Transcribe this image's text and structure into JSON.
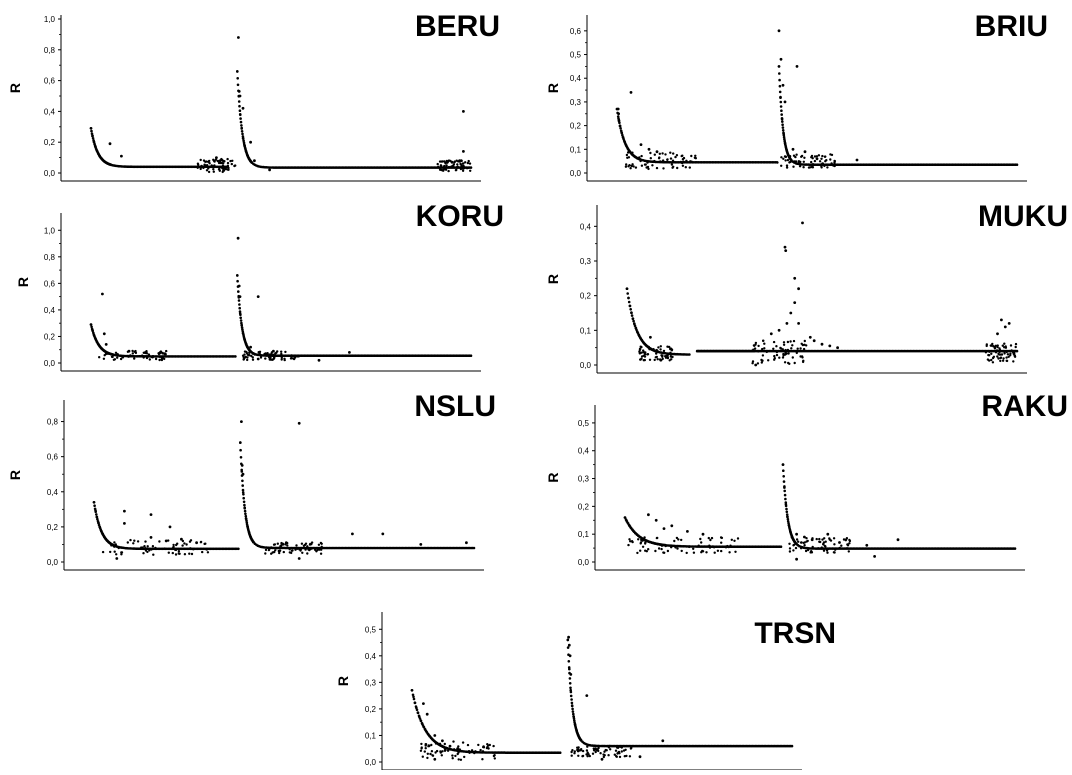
{
  "chart_data": [
    {
      "type": "scatter",
      "title": "BERU",
      "ylabel": "R",
      "ylim": [
        0,
        1.0
      ],
      "yticks": [
        "0,0",
        "0,2",
        "0,4",
        "0,6",
        "0,8",
        "1,0"
      ],
      "series": [
        {
          "segments": [
            {
              "x0": 0.0,
              "x1": 0.36,
              "base": 0.04,
              "peak": 0.29,
              "decay": 0.018
            },
            {
              "x0": 0.385,
              "x1": 1.0,
              "base": 0.035,
              "peak": 0.66,
              "decay": 0.013
            }
          ]
        }
      ],
      "outliers": [
        [
          0.388,
          0.88
        ],
        [
          0.39,
          0.53
        ],
        [
          0.392,
          0.5
        ],
        [
          0.4,
          0.42
        ],
        [
          0.42,
          0.2
        ],
        [
          0.05,
          0.19
        ],
        [
          0.08,
          0.11
        ],
        [
          0.34,
          0.08
        ],
        [
          0.33,
          0.1
        ],
        [
          0.98,
          0.4
        ],
        [
          0.98,
          0.14
        ],
        [
          0.97,
          0.08
        ],
        [
          0.95,
          0.07
        ],
        [
          0.47,
          0.02
        ],
        [
          0.43,
          0.08
        ]
      ],
      "noise_zones": [
        [
          0.28,
          0.38,
          0.06
        ],
        [
          0.91,
          1.0,
          0.05
        ]
      ]
    },
    {
      "type": "scatter",
      "title": "BRIU",
      "ylabel": "R",
      "ylim": [
        0,
        0.65
      ],
      "yticks": [
        "0,0",
        "0,1",
        "0,2",
        "0,3",
        "0,4",
        "0,5",
        "0,6"
      ],
      "series": [
        {
          "segments": [
            {
              "x0": 0.0,
              "x1": 0.4,
              "base": 0.045,
              "peak": 0.27,
              "decay": 0.02
            },
            {
              "x0": 0.405,
              "x1": 1.0,
              "base": 0.035,
              "peak": 0.45,
              "decay": 0.01
            }
          ]
        }
      ],
      "outliers": [
        [
          0.003,
          0.27
        ],
        [
          0.004,
          0.25
        ],
        [
          0.005,
          0.22
        ],
        [
          0.035,
          0.34
        ],
        [
          0.06,
          0.12
        ],
        [
          0.08,
          0.1
        ],
        [
          0.1,
          0.09
        ],
        [
          0.405,
          0.6
        ],
        [
          0.41,
          0.48
        ],
        [
          0.415,
          0.37
        ],
        [
          0.42,
          0.3
        ],
        [
          0.45,
          0.45
        ],
        [
          0.44,
          0.1
        ],
        [
          0.47,
          0.09
        ],
        [
          0.6,
          0.055
        ],
        [
          0.5,
          0.06
        ]
      ],
      "noise_zones": [
        [
          0.02,
          0.2,
          0.05
        ],
        [
          0.4,
          0.55,
          0.04
        ]
      ]
    },
    {
      "type": "scatter",
      "title": "KORU",
      "ylabel": "R",
      "ylim": [
        0,
        1.1
      ],
      "yticks": [
        "0,0",
        "0,2",
        "0,4",
        "0,6",
        "0,8",
        "1,0"
      ],
      "series": [
        {
          "segments": [
            {
              "x0": 0.0,
              "x1": 0.38,
              "base": 0.05,
              "peak": 0.29,
              "decay": 0.02
            },
            {
              "x0": 0.385,
              "x1": 1.0,
              "base": 0.055,
              "peak": 0.66,
              "decay": 0.012
            }
          ]
        }
      ],
      "outliers": [
        [
          0.03,
          0.52
        ],
        [
          0.035,
          0.22
        ],
        [
          0.04,
          0.14
        ],
        [
          0.387,
          0.94
        ],
        [
          0.39,
          0.58
        ],
        [
          0.392,
          0.5
        ],
        [
          0.44,
          0.5
        ],
        [
          0.44,
          0.03
        ],
        [
          0.42,
          0.12
        ],
        [
          0.1,
          0.09
        ],
        [
          0.48,
          0.09
        ],
        [
          0.6,
          0.02
        ],
        [
          0.68,
          0.08
        ]
      ],
      "noise_zones": [
        [
          0.02,
          0.2,
          0.05
        ],
        [
          0.4,
          0.55,
          0.05
        ]
      ]
    },
    {
      "type": "scatter",
      "title": "MUKU",
      "ylabel": "R",
      "ylim": [
        0,
        0.45
      ],
      "yticks": [
        "0,0",
        "0,1",
        "0,2",
        "0,3",
        "0,4"
      ],
      "series": [
        {
          "segments": [
            {
              "x0": 0.0,
              "x1": 0.16,
              "base": 0.03,
              "peak": 0.22,
              "decay": 0.025
            },
            {
              "x0": 0.18,
              "x1": 1.0,
              "base": 0.04,
              "peak": 0.04,
              "decay": 0.05
            }
          ]
        }
      ],
      "outliers": [
        [
          0.405,
          0.34
        ],
        [
          0.407,
          0.33
        ],
        [
          0.45,
          0.41
        ],
        [
          0.43,
          0.25
        ],
        [
          0.44,
          0.22
        ],
        [
          0.43,
          0.18
        ],
        [
          0.42,
          0.15
        ],
        [
          0.44,
          0.12
        ],
        [
          0.41,
          0.12
        ],
        [
          0.39,
          0.1
        ],
        [
          0.37,
          0.09
        ],
        [
          0.47,
          0.08
        ],
        [
          0.48,
          0.07
        ],
        [
          0.5,
          0.06
        ],
        [
          0.52,
          0.055
        ],
        [
          0.54,
          0.05
        ],
        [
          0.33,
          0.0
        ],
        [
          0.96,
          0.13
        ],
        [
          0.97,
          0.11
        ],
        [
          0.95,
          0.09
        ],
        [
          0.98,
          0.12
        ],
        [
          0.06,
          0.08
        ]
      ],
      "noise_zones": [
        [
          0.32,
          0.46,
          0.05
        ],
        [
          0.92,
          1.0,
          0.04
        ],
        [
          0.03,
          0.12,
          0.03
        ]
      ]
    },
    {
      "type": "scatter",
      "title": "NSLU",
      "ylabel": "R",
      "ylim": [
        0,
        0.9
      ],
      "yticks": [
        "0,0",
        "0,2",
        "0,4",
        "0,6",
        "0,8"
      ],
      "series": [
        {
          "segments": [
            {
              "x0": 0.0,
              "x1": 0.38,
              "base": 0.075,
              "peak": 0.34,
              "decay": 0.02
            },
            {
              "x0": 0.385,
              "x1": 1.0,
              "base": 0.08,
              "peak": 0.68,
              "decay": 0.012
            }
          ]
        }
      ],
      "outliers": [
        [
          0.388,
          0.8
        ],
        [
          0.39,
          0.55
        ],
        [
          0.392,
          0.5
        ],
        [
          0.54,
          0.79
        ],
        [
          0.08,
          0.29
        ],
        [
          0.08,
          0.22
        ],
        [
          0.15,
          0.27
        ],
        [
          0.15,
          0.14
        ],
        [
          0.2,
          0.2
        ],
        [
          0.19,
          0.12
        ],
        [
          0.23,
          0.13
        ],
        [
          0.27,
          0.11
        ],
        [
          0.68,
          0.16
        ],
        [
          0.76,
          0.16
        ],
        [
          0.86,
          0.1
        ],
        [
          0.98,
          0.11
        ],
        [
          0.06,
          0.02
        ],
        [
          0.54,
          0.02
        ]
      ],
      "noise_zones": [
        [
          0.02,
          0.3,
          0.06
        ],
        [
          0.45,
          0.6,
          0.05
        ]
      ]
    },
    {
      "type": "scatter",
      "title": "RAKU",
      "ylabel": "R",
      "ylim": [
        0,
        0.55
      ],
      "yticks": [
        "0,0",
        "0,1",
        "0,2",
        "0,3",
        "0,4",
        "0,5"
      ],
      "series": [
        {
          "segments": [
            {
              "x0": 0.0,
              "x1": 0.4,
              "base": 0.055,
              "peak": 0.16,
              "decay": 0.035
            },
            {
              "x0": 0.405,
              "x1": 1.0,
              "base": 0.048,
              "peak": 0.35,
              "decay": 0.012
            }
          ]
        }
      ],
      "outliers": [
        [
          0.06,
          0.17
        ],
        [
          0.08,
          0.15
        ],
        [
          0.1,
          0.12
        ],
        [
          0.12,
          0.13
        ],
        [
          0.16,
          0.11
        ],
        [
          0.2,
          0.1
        ],
        [
          0.44,
          0.1
        ],
        [
          0.46,
          0.09
        ],
        [
          0.44,
          0.01
        ],
        [
          0.48,
          0.08
        ],
        [
          0.52,
          0.1
        ],
        [
          0.55,
          0.07
        ],
        [
          0.62,
          0.06
        ],
        [
          0.64,
          0.02
        ],
        [
          0.7,
          0.08
        ]
      ],
      "noise_zones": [
        [
          0.0,
          0.3,
          0.04
        ],
        [
          0.42,
          0.58,
          0.04
        ]
      ]
    },
    {
      "type": "scatter",
      "title": "TRSN",
      "ylabel": "R",
      "ylim": [
        0,
        0.55
      ],
      "yticks": [
        "0,0",
        "0,1",
        "0,2",
        "0,3",
        "0,4",
        "0,5"
      ],
      "series": [
        {
          "segments": [
            {
              "x0": 0.0,
              "x1": 0.39,
              "base": 0.035,
              "peak": 0.27,
              "decay": 0.035
            },
            {
              "x0": 0.41,
              "x1": 1.0,
              "base": 0.06,
              "peak": 0.46,
              "decay": 0.012
            }
          ]
        }
      ],
      "outliers": [
        [
          0.412,
          0.47
        ],
        [
          0.414,
          0.44
        ],
        [
          0.416,
          0.4
        ],
        [
          0.418,
          0.33
        ],
        [
          0.46,
          0.25
        ],
        [
          0.03,
          0.22
        ],
        [
          0.04,
          0.18
        ],
        [
          0.06,
          0.1
        ],
        [
          0.08,
          0.08
        ],
        [
          0.1,
          0.06
        ],
        [
          0.12,
          0.05
        ],
        [
          0.15,
          0.04
        ],
        [
          0.06,
          0.01
        ],
        [
          0.5,
          0.01
        ],
        [
          0.52,
          0.06
        ],
        [
          0.6,
          0.02
        ],
        [
          0.66,
          0.08
        ]
      ],
      "noise_zones": [
        [
          0.02,
          0.22,
          0.05
        ],
        [
          0.42,
          0.58,
          0.03
        ]
      ]
    }
  ]
}
